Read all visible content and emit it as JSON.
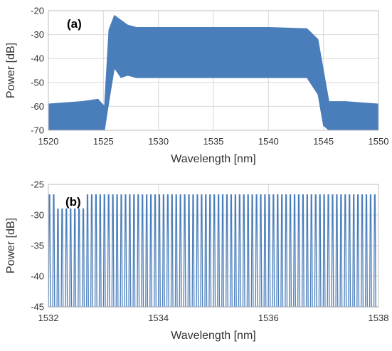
{
  "chart_data": [
    {
      "type": "line",
      "panel_label": "(a)",
      "xlabel": "Wavelength [nm]",
      "ylabel": "Power [dB]",
      "xlim": [
        1520,
        1550
      ],
      "ylim": [
        -70,
        -20
      ],
      "xticks": [
        1520,
        1525,
        1530,
        1535,
        1540,
        1545,
        1550
      ],
      "yticks": [
        -20,
        -30,
        -40,
        -50,
        -60,
        -70
      ],
      "grid": true,
      "series_color": "#4a7ebb",
      "envelope": {
        "x": [
          1520,
          1523,
          1524.5,
          1525.1,
          1525.5,
          1526.0,
          1526.6,
          1527.2,
          1528.0,
          1530.0,
          1535.0,
          1540.0,
          1543.5,
          1544.5,
          1545.0,
          1545.5,
          1547.0,
          1550.0
        ],
        "upper": [
          -59,
          -58,
          -57,
          -60,
          -28,
          -22,
          -24,
          -26,
          -27,
          -27,
          -27,
          -27,
          -27.5,
          -32,
          -45,
          -58,
          -58,
          -59
        ],
        "lower": [
          -70,
          -70,
          -70,
          -70,
          -58,
          -44,
          -48,
          -47,
          -48,
          -48,
          -48,
          -48,
          -48,
          -55,
          -68,
          -70,
          -70,
          -70
        ]
      }
    },
    {
      "type": "line",
      "panel_label": "(b)",
      "xlabel": "Wavelength [nm]",
      "ylabel": "Power [dB]",
      "xlim": [
        1532,
        1538
      ],
      "ylim": [
        -45,
        -25
      ],
      "xticks": [
        1532,
        1534,
        1536,
        1538
      ],
      "yticks": [
        -25,
        -30,
        -35,
        -40,
        -45
      ],
      "grid": true,
      "series_color": "#4a7ebb",
      "comb": {
        "start": 1532.02,
        "end": 1538.0,
        "spacing": 0.0768,
        "peak_db": -26.7,
        "low_peak_db": -29.0,
        "low_peak_range": [
          1532.1,
          1532.7
        ],
        "floor_db": -45
      }
    }
  ]
}
